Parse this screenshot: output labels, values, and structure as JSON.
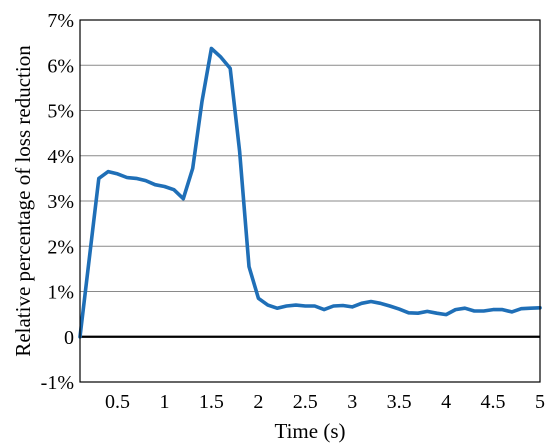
{
  "chart_data": {
    "type": "line",
    "title": "",
    "xlabel": "Time (s)",
    "ylabel": "Relative percentage of loss reduction",
    "xlim": [
      0.1,
      5
    ],
    "ylim": [
      -1,
      7
    ],
    "xticks": [
      0.5,
      1,
      1.5,
      2,
      2.5,
      3,
      3.5,
      4,
      4.5,
      5
    ],
    "xtick_labels": [
      "0.5",
      "1",
      "1.5",
      "2",
      "2.5",
      "3",
      "3.5",
      "4",
      "4.5",
      "5"
    ],
    "yticks": [
      -1,
      0,
      1,
      2,
      3,
      4,
      5,
      6,
      7
    ],
    "ytick_labels": [
      "-1%",
      "0",
      "1%",
      "2%",
      "3%",
      "4%",
      "5%",
      "6%",
      "7%"
    ],
    "grid": "horizontal",
    "reference_line_y": 0,
    "series": [
      {
        "color": "#1f6fb7",
        "x": [
          0.1,
          0.3,
          0.4,
          0.5,
          0.6,
          0.7,
          0.8,
          0.9,
          1.0,
          1.1,
          1.2,
          1.3,
          1.4,
          1.5,
          1.6,
          1.7,
          1.8,
          1.9,
          2.0,
          2.1,
          2.2,
          2.3,
          2.4,
          2.5,
          2.6,
          2.7,
          2.8,
          2.9,
          3.0,
          3.1,
          3.2,
          3.3,
          3.4,
          3.5,
          3.6,
          3.7,
          3.8,
          3.9,
          4.0,
          4.1,
          4.2,
          4.3,
          4.4,
          4.5,
          4.6,
          4.7,
          4.8,
          4.9,
          5.0
        ],
        "y": [
          0.0,
          3.5,
          3.65,
          3.6,
          3.52,
          3.5,
          3.45,
          3.36,
          3.32,
          3.25,
          3.05,
          3.72,
          5.2,
          6.37,
          6.18,
          5.93,
          4.1,
          1.55,
          0.85,
          0.7,
          0.63,
          0.68,
          0.7,
          0.68,
          0.68,
          0.6,
          0.68,
          0.69,
          0.66,
          0.74,
          0.78,
          0.74,
          0.68,
          0.61,
          0.53,
          0.52,
          0.56,
          0.52,
          0.49,
          0.6,
          0.63,
          0.57,
          0.57,
          0.6,
          0.6,
          0.55,
          0.62,
          0.63,
          0.64
        ]
      }
    ]
  }
}
